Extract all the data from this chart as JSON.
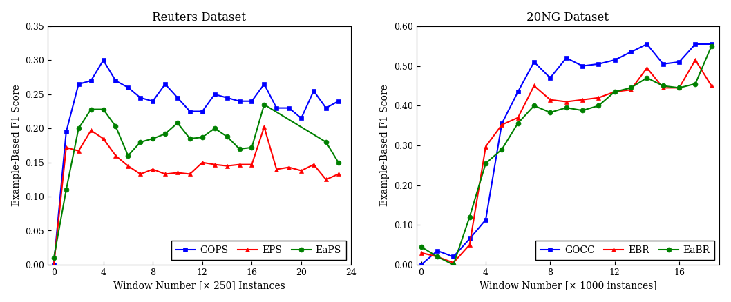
{
  "reuters": {
    "title": "Reuters Dataset",
    "xlabel": "Window Number [× 250] Instances",
    "ylabel": "Example-Based F1 Score",
    "xlim": [
      -0.5,
      24
    ],
    "ylim": [
      0,
      0.35
    ],
    "xticks": [
      0,
      4,
      8,
      12,
      16,
      20,
      24
    ],
    "yticks": [
      0,
      0.05,
      0.1,
      0.15,
      0.2,
      0.25,
      0.3,
      0.35
    ],
    "GOPS": {
      "x": [
        0,
        1,
        2,
        3,
        4,
        5,
        6,
        7,
        8,
        9,
        10,
        11,
        12,
        13,
        14,
        15,
        16,
        17,
        18,
        19,
        20,
        21,
        22,
        23
      ],
      "y": [
        0.0,
        0.195,
        0.265,
        0.27,
        0.3,
        0.27,
        0.26,
        0.245,
        0.24,
        0.265,
        0.245,
        0.225,
        0.225,
        0.25,
        0.245,
        0.24,
        0.24,
        0.265,
        0.23,
        0.23,
        0.215,
        0.255,
        0.23,
        0.24
      ],
      "color": "#0000FF",
      "marker": "s",
      "label": "GOPS"
    },
    "EPS": {
      "x": [
        0,
        1,
        2,
        3,
        4,
        5,
        6,
        7,
        8,
        9,
        10,
        11,
        12,
        13,
        14,
        15,
        16,
        17,
        18,
        19,
        20,
        21,
        22,
        23
      ],
      "y": [
        0.0,
        0.172,
        0.167,
        0.197,
        0.185,
        0.16,
        0.145,
        0.133,
        0.14,
        0.133,
        0.135,
        0.133,
        0.15,
        0.147,
        0.145,
        0.147,
        0.147,
        0.202,
        0.14,
        0.143,
        0.138,
        0.147,
        0.125,
        0.133
      ],
      "color": "#FF0000",
      "marker": "^",
      "label": "EPS"
    },
    "EaPS": {
      "x": [
        0,
        1,
        2,
        3,
        4,
        5,
        6,
        7,
        8,
        9,
        10,
        11,
        12,
        13,
        14,
        15,
        16,
        17,
        22,
        23
      ],
      "y": [
        0.01,
        0.11,
        0.2,
        0.228,
        0.228,
        0.203,
        0.16,
        0.18,
        0.185,
        0.192,
        0.208,
        0.185,
        0.187,
        0.2,
        0.188,
        0.17,
        0.172,
        0.235,
        0.18,
        0.15
      ],
      "color": "#008000",
      "marker": "o",
      "label": "EaPS"
    }
  },
  "ng20": {
    "title": "20NG Dataset",
    "xlabel": "Window Number [× 1000 instances]",
    "ylabel": "Example-Based F1 Score",
    "xlim": [
      -0.3,
      18.5
    ],
    "ylim": [
      0,
      0.6
    ],
    "xticks": [
      0,
      4,
      8,
      12,
      16
    ],
    "yticks": [
      0,
      0.1,
      0.2,
      0.3,
      0.4,
      0.5,
      0.6
    ],
    "GOCC": {
      "x": [
        0,
        1,
        2,
        3,
        4,
        5,
        6,
        7,
        8,
        9,
        10,
        11,
        12,
        13,
        14,
        15,
        16,
        17,
        18
      ],
      "y": [
        0.0,
        0.035,
        0.02,
        0.065,
        0.113,
        0.355,
        0.435,
        0.51,
        0.47,
        0.52,
        0.5,
        0.505,
        0.515,
        0.535,
        0.555,
        0.505,
        0.51,
        0.555,
        0.555
      ],
      "color": "#0000FF",
      "marker": "s",
      "label": "GOCC"
    },
    "EBR": {
      "x": [
        0,
        1,
        2,
        3,
        4,
        5,
        6,
        7,
        8,
        9,
        10,
        11,
        12,
        13,
        14,
        15,
        16,
        17,
        18
      ],
      "y": [
        0.03,
        0.02,
        0.005,
        0.05,
        0.297,
        0.352,
        0.37,
        0.45,
        0.415,
        0.41,
        0.415,
        0.42,
        0.435,
        0.44,
        0.495,
        0.445,
        0.445,
        0.515,
        0.45
      ],
      "color": "#FF0000",
      "marker": "^",
      "label": "EBR"
    },
    "EaBR": {
      "x": [
        0,
        1,
        2,
        3,
        4,
        5,
        6,
        7,
        8,
        9,
        10,
        11,
        12,
        13,
        14,
        15,
        16,
        17,
        18
      ],
      "y": [
        0.045,
        0.02,
        0.0,
        0.12,
        0.255,
        0.29,
        0.356,
        0.4,
        0.383,
        0.395,
        0.388,
        0.4,
        0.435,
        0.445,
        0.47,
        0.45,
        0.445,
        0.455,
        0.55
      ],
      "color": "#008000",
      "marker": "o",
      "label": "EaBR"
    }
  },
  "bg_color": "#ffffff",
  "plot_bg_color": "#ffffff",
  "linewidth": 1.5,
  "markersize": 5,
  "fontsize_title": 12,
  "fontsize_label": 10,
  "fontsize_tick": 9,
  "fontsize_legend": 10
}
